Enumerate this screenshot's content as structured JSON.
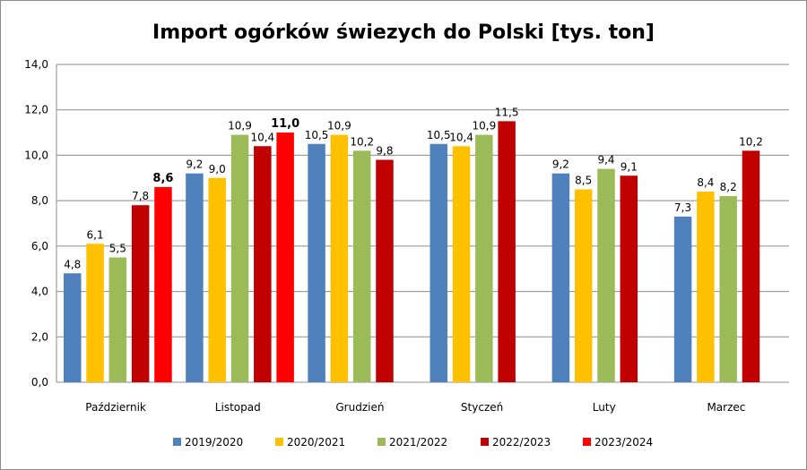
{
  "chart_data": {
    "type": "bar",
    "title": "Import ogórków świezych do Polski [tys. ton]",
    "xlabel": "",
    "ylabel": "",
    "ylim": [
      0,
      14
    ],
    "y_ticks": [
      "0,0",
      "2,0",
      "4,0",
      "6,0",
      "8,0",
      "10,0",
      "12,0",
      "14,0"
    ],
    "grid": true,
    "legend_position": "bottom",
    "categories": [
      "Październik",
      "Listopad",
      "Grudzień",
      "Styczeń",
      "Luty",
      "Marzec"
    ],
    "series": [
      {
        "name": "2019/2020",
        "color": "#4f81bd",
        "values": [
          4.8,
          9.2,
          10.5,
          10.5,
          9.2,
          7.3
        ],
        "labels": [
          "4,8",
          "9,2",
          "10,5",
          "10,5",
          "9,2",
          "7,3"
        ]
      },
      {
        "name": "2020/2021",
        "color": "#ffc000",
        "values": [
          6.1,
          9.0,
          10.9,
          10.4,
          8.5,
          8.4
        ],
        "labels": [
          "6,1",
          "9,0",
          "10,9",
          "10,4",
          "8,5",
          "8,4"
        ]
      },
      {
        "name": "2021/2022",
        "color": "#9bbb59",
        "values": [
          5.5,
          10.9,
          10.2,
          10.9,
          9.4,
          8.2
        ],
        "labels": [
          "5,5",
          "10,9",
          "10,2",
          "10,9",
          "9,4",
          "8,2"
        ]
      },
      {
        "name": "2022/2023",
        "color": "#c00000",
        "values": [
          7.8,
          10.4,
          9.8,
          11.5,
          9.1,
          10.2
        ],
        "labels": [
          "7,8",
          "10,4",
          "9,8",
          "11,5",
          "9,1",
          "10,2"
        ]
      },
      {
        "name": "2023/2024",
        "color": "#ff0000",
        "bold_labels": true,
        "values": [
          8.6,
          11.0,
          null,
          null,
          null,
          null
        ],
        "labels": [
          "8,6",
          "11,0",
          null,
          null,
          null,
          null
        ]
      }
    ]
  }
}
